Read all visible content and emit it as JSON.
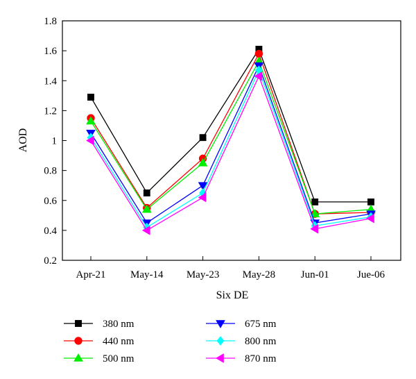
{
  "chart_data": {
    "type": "line",
    "xlabel": "Six DE",
    "ylabel": "AOD",
    "categories": [
      "Apr-21",
      "May-14",
      "May-23",
      "May-28",
      "Jun-01",
      "Jue-06"
    ],
    "ylim": [
      0.2,
      1.8
    ],
    "yticks": [
      "0.2",
      "0.4",
      "0.6",
      "0.8",
      "1",
      "1.2",
      "1.4",
      "1.6",
      "1.8"
    ],
    "grid": false,
    "legend_position": "bottom",
    "series": [
      {
        "name": "380 nm",
        "color": "#000000",
        "marker": "square",
        "values": [
          1.29,
          0.65,
          1.02,
          1.61,
          0.59,
          0.59
        ]
      },
      {
        "name": "440 nm",
        "color": "#ff0000",
        "marker": "circle",
        "values": [
          1.15,
          0.55,
          0.88,
          1.58,
          0.51,
          0.52
        ]
      },
      {
        "name": "500 nm",
        "color": "#00ee00",
        "marker": "triangle-up",
        "values": [
          1.13,
          0.54,
          0.85,
          1.53,
          0.51,
          0.54
        ]
      },
      {
        "name": "675 nm",
        "color": "#0000ff",
        "marker": "triangle-down",
        "values": [
          1.05,
          0.45,
          0.7,
          1.5,
          0.45,
          0.51
        ]
      },
      {
        "name": "800 nm",
        "color": "#00ffff",
        "marker": "diamond",
        "values": [
          1.02,
          0.42,
          0.65,
          1.47,
          0.43,
          0.49
        ]
      },
      {
        "name": "870 nm",
        "color": "#ff00ff",
        "marker": "triangle-left",
        "values": [
          1.0,
          0.4,
          0.62,
          1.43,
          0.41,
          0.48
        ]
      }
    ]
  }
}
